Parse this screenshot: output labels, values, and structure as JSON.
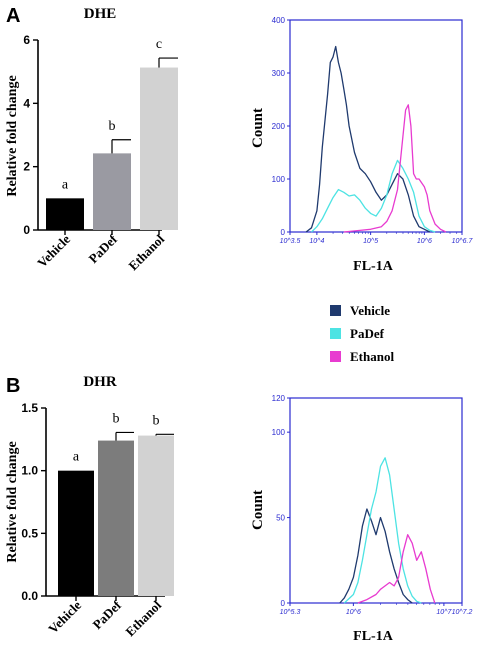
{
  "legend": {
    "entries": [
      {
        "name": "Vehicle",
        "color": "#1f3a6e"
      },
      {
        "name": "PaDef",
        "color": "#4de3e3"
      },
      {
        "name": "Ethanol",
        "color": "#e83bd0"
      }
    ]
  },
  "chart_data": [
    {
      "type": "bar",
      "panel_label": "A",
      "title": "DHE",
      "ylabel": "Relative fold change",
      "xlabel": "",
      "categories": [
        "Vehicle",
        "PaDef",
        "Ethanol"
      ],
      "values": [
        1.0,
        2.42,
        5.13
      ],
      "errors": [
        0,
        0.43,
        0.3
      ],
      "significance_letters": [
        "a",
        "b",
        "c"
      ],
      "bar_colors": [
        "#000000",
        "#9a9aa2",
        "#d2d2d2"
      ],
      "ylim": [
        0,
        6
      ],
      "yticks": [
        "0",
        "2",
        "4",
        "6"
      ],
      "yticks_values": [
        0,
        2,
        4,
        6
      ],
      "grid": false
    },
    {
      "type": "line",
      "title": "",
      "xlabel": "FL-1A",
      "ylabel": "Count",
      "log_x": true,
      "xlim": [
        3.5,
        6.7
      ],
      "ylim": [
        0,
        400
      ],
      "x_tick_values": [
        3.5,
        4,
        5,
        6,
        6.7
      ],
      "x_tick_labels": [
        "10^3.5",
        "10^4",
        "10^5",
        "10^6",
        "10^6.7"
      ],
      "y_tick_values": [
        0,
        100,
        200,
        300,
        400
      ],
      "y_tick_labels": [
        "0",
        "100",
        "200",
        "300",
        "400"
      ],
      "series": [
        {
          "name": "Vehicle",
          "color": "#1f3a6e",
          "x": [
            3.8,
            3.9,
            4.0,
            4.05,
            4.1,
            4.2,
            4.25,
            4.3,
            4.35,
            4.4,
            4.45,
            4.5,
            4.55,
            4.6,
            4.7,
            4.8,
            4.9,
            5.0,
            5.1,
            5.2,
            5.3,
            5.4,
            5.5,
            5.6,
            5.7,
            5.8,
            5.9,
            6.0,
            6.1
          ],
          "y": [
            0,
            8,
            40,
            90,
            160,
            260,
            320,
            330,
            350,
            320,
            300,
            270,
            240,
            200,
            150,
            120,
            110,
            95,
            75,
            60,
            70,
            90,
            110,
            100,
            70,
            30,
            10,
            5,
            0
          ]
        },
        {
          "name": "PaDef",
          "color": "#4de3e3",
          "x": [
            3.9,
            4.0,
            4.1,
            4.2,
            4.3,
            4.4,
            4.5,
            4.6,
            4.7,
            4.8,
            4.9,
            5.0,
            5.1,
            5.2,
            5.3,
            5.4,
            5.5,
            5.6,
            5.7,
            5.8,
            5.9,
            6.0,
            6.1,
            6.2
          ],
          "y": [
            0,
            10,
            25,
            45,
            65,
            80,
            75,
            68,
            70,
            60,
            45,
            35,
            30,
            45,
            70,
            110,
            135,
            120,
            100,
            75,
            30,
            10,
            3,
            0
          ]
        },
        {
          "name": "Ethanol",
          "color": "#e83bd0",
          "x": [
            4.5,
            4.8,
            5.0,
            5.2,
            5.3,
            5.4,
            5.5,
            5.55,
            5.6,
            5.65,
            5.7,
            5.75,
            5.8,
            5.85,
            5.9,
            6.0,
            6.05,
            6.1,
            6.2,
            6.3,
            6.4
          ],
          "y": [
            0,
            3,
            5,
            10,
            20,
            40,
            80,
            130,
            180,
            230,
            240,
            200,
            110,
            100,
            100,
            85,
            70,
            40,
            15,
            5,
            0
          ]
        }
      ]
    },
    {
      "type": "bar",
      "panel_label": "B",
      "title": "DHR",
      "ylabel": "Relative fold change",
      "xlabel": "",
      "categories": [
        "Vehicle",
        "PaDef",
        "Ethanol"
      ],
      "values": [
        1.0,
        1.24,
        1.28
      ],
      "errors": [
        0,
        0.065,
        0.01
      ],
      "significance_letters": [
        "a",
        "b",
        "b"
      ],
      "bar_colors": [
        "#000000",
        "#7c7c7c",
        "#d2d2d2"
      ],
      "ylim": [
        0,
        1.5
      ],
      "yticks": [
        "0.0",
        "0.5",
        "1.0",
        "1.5"
      ],
      "yticks_values": [
        0,
        0.5,
        1.0,
        1.5
      ],
      "grid": false
    },
    {
      "type": "line",
      "title": "",
      "xlabel": "FL-1A",
      "ylabel": "Count",
      "log_x": true,
      "xlim": [
        5.3,
        7.2
      ],
      "ylim": [
        0,
        120
      ],
      "x_tick_values": [
        5.3,
        6,
        7,
        7.2
      ],
      "x_tick_labels": [
        "10^5.3",
        "10^6",
        "10^7",
        "10^7.2"
      ],
      "y_tick_values": [
        0,
        50,
        100,
        120
      ],
      "y_tick_labels": [
        "0",
        "50",
        "100",
        "120"
      ],
      "series": [
        {
          "name": "Vehicle",
          "color": "#1f3a6e",
          "x": [
            5.85,
            5.9,
            5.95,
            6.0,
            6.05,
            6.1,
            6.15,
            6.2,
            6.25,
            6.3,
            6.35,
            6.4,
            6.45,
            6.5,
            6.55,
            6.6,
            6.65
          ],
          "y": [
            0,
            3,
            8,
            15,
            28,
            45,
            55,
            48,
            40,
            50,
            42,
            30,
            20,
            12,
            5,
            2,
            0
          ]
        },
        {
          "name": "PaDef",
          "color": "#4de3e3",
          "x": [
            5.9,
            6.0,
            6.05,
            6.1,
            6.15,
            6.2,
            6.25,
            6.3,
            6.35,
            6.4,
            6.45,
            6.5,
            6.55,
            6.6,
            6.65,
            6.7,
            6.75
          ],
          "y": [
            0,
            5,
            12,
            25,
            40,
            55,
            65,
            80,
            85,
            75,
            55,
            35,
            20,
            10,
            4,
            1,
            0
          ]
        },
        {
          "name": "Ethanol",
          "color": "#e83bd0",
          "x": [
            6.05,
            6.15,
            6.25,
            6.3,
            6.4,
            6.45,
            6.5,
            6.55,
            6.6,
            6.65,
            6.7,
            6.75,
            6.8,
            6.85,
            6.9
          ],
          "y": [
            0,
            2,
            5,
            8,
            12,
            10,
            15,
            30,
            40,
            35,
            25,
            30,
            20,
            8,
            0
          ]
        }
      ]
    }
  ]
}
